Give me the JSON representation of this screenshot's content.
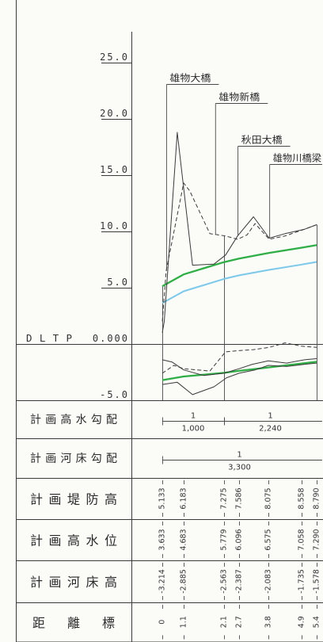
{
  "chart_data": {
    "type": "line",
    "ylim": [
      -5,
      25
    ],
    "xlim": [
      0,
      5.4
    ],
    "grid": false,
    "datum_label": "DLTP",
    "y_ticks": [
      {
        "value": 25,
        "label": "25.0"
      },
      {
        "value": 20,
        "label": "20.0"
      },
      {
        "value": 15,
        "label": "15.0"
      },
      {
        "value": 10,
        "label": "10.0"
      },
      {
        "value": 5,
        "label": "5.0"
      },
      {
        "value": 0,
        "label": "0.000"
      },
      {
        "value": -5,
        "label": "-5.0"
      }
    ],
    "stations_km": [
      0,
      1.1,
      2.1,
      2.7,
      3.8,
      4.9,
      5.4
    ],
    "annotations": [
      {
        "text": "雄物大橋",
        "x": 0.2
      },
      {
        "text": "雄物新橋",
        "x": 1.88
      },
      {
        "text": "秋田大橋",
        "x": 2.64
      },
      {
        "text": "雄物川橋梁",
        "x": 3.83
      }
    ],
    "series": [
      {
        "color": "#2fae46",
        "style": "solid",
        "x": [
          0,
          1.1,
          2.1,
          2.7,
          3.8,
          4.9,
          5.4
        ],
        "y": [
          5.133,
          6.183,
          7.275,
          7.586,
          8.075,
          8.558,
          8.79
        ]
      },
      {
        "color": "#7cc8ea",
        "style": "solid",
        "x": [
          0,
          1.1,
          2.1,
          2.7,
          3.8,
          4.9,
          5.4
        ],
        "y": [
          3.633,
          4.683,
          5.779,
          6.096,
          6.575,
          7.058,
          7.29
        ]
      },
      {
        "color": "#2fae46",
        "style": "solid",
        "x": [
          0,
          1.1,
          2.1,
          2.7,
          3.8,
          4.9,
          5.4
        ],
        "y": [
          -3.214,
          -2.885,
          -2.563,
          -2.387,
          -2.083,
          -1.735,
          -1.578
        ]
      },
      {
        "color": "#3a3a3a",
        "style": "solid",
        "x": [
          0,
          0.1,
          0.77,
          1.32,
          1.85,
          2.16,
          2.64,
          3.24,
          3.83,
          4.35,
          5.0,
          5.4
        ],
        "y": [
          1.0,
          2.0,
          18.8,
          7.0,
          7.1,
          7.9,
          9.6,
          11.3,
          9.4,
          9.8,
          10.2,
          10.6
        ]
      },
      {
        "color": "#3a3a3a",
        "style": "dashed",
        "x": [
          0,
          0.2,
          1.1,
          1.25,
          1.75,
          2.16,
          2.64,
          3.0,
          3.3,
          3.83,
          4.35,
          5.0,
          5.4
        ],
        "y": [
          2.0,
          6.5,
          14.3,
          13.6,
          9.8,
          9.6,
          9.3,
          9.7,
          10.7,
          9.3,
          9.6,
          10.2,
          10.6
        ]
      },
      {
        "color": "#3a3a3a",
        "style": "solid",
        "x": [
          0,
          0.5,
          1.1,
          1.6,
          2.1,
          2.7,
          3.2,
          3.8,
          4.4,
          5.0,
          5.4
        ],
        "y": [
          -1.4,
          -1.6,
          -2.3,
          -2.8,
          -2.6,
          -2.2,
          -1.8,
          -1.5,
          -1.7,
          -1.4,
          -1.3
        ]
      },
      {
        "color": "#3a3a3a",
        "style": "dashed",
        "x": [
          0,
          0.6,
          1.1,
          1.75,
          2.16,
          2.64,
          3.24,
          3.83,
          4.35,
          4.9,
          5.4
        ],
        "y": [
          -2.6,
          -1.9,
          -2.2,
          -2.4,
          -0.7,
          -0.6,
          -0.5,
          -0.3,
          0.1,
          -0.2,
          -0.3
        ]
      },
      {
        "color": "#3a3a3a",
        "style": "solid",
        "x": [
          0,
          0.77,
          1.32,
          1.85,
          2.2,
          2.7,
          3.3,
          3.8,
          4.4,
          5.0,
          5.4
        ],
        "y": [
          -3.6,
          -3.4,
          -4.5,
          -3.8,
          -3.0,
          -2.6,
          -2.3,
          -1.9,
          -2.0,
          -1.8,
          -1.7
        ]
      }
    ]
  },
  "table": {
    "rows": [
      {
        "label": "計画高水勾配",
        "segments": [
          {
            "num": "1",
            "den": "1,000",
            "from": 0,
            "to": 2.1
          },
          {
            "num": "1",
            "den": "2,240",
            "from": 2.1,
            "to": 5.4
          }
        ]
      },
      {
        "label": "計画河床勾配",
        "segments": [
          {
            "num": "1",
            "den": "3,300",
            "from": 0,
            "to": 5.4
          }
        ]
      },
      {
        "label": "計画堤防高",
        "values": [
          "5.133",
          "6.183",
          "7.275",
          "7.586",
          "8.075",
          "8.558",
          "8.790"
        ]
      },
      {
        "label": "計画高水位",
        "values": [
          "3.633",
          "4.683",
          "5.779",
          "6.096",
          "6.575",
          "7.058",
          "7.290"
        ]
      },
      {
        "label": "計画河床高",
        "values": [
          "-3.214",
          "-2.885",
          "-2.563",
          "-2.387",
          "-2.083",
          "-1.735",
          "-1.578"
        ]
      },
      {
        "label": "距離標",
        "values": [
          "0",
          "1.1",
          "2.1",
          "2.7",
          "3.8",
          "4.9",
          "5.4"
        ]
      }
    ]
  }
}
